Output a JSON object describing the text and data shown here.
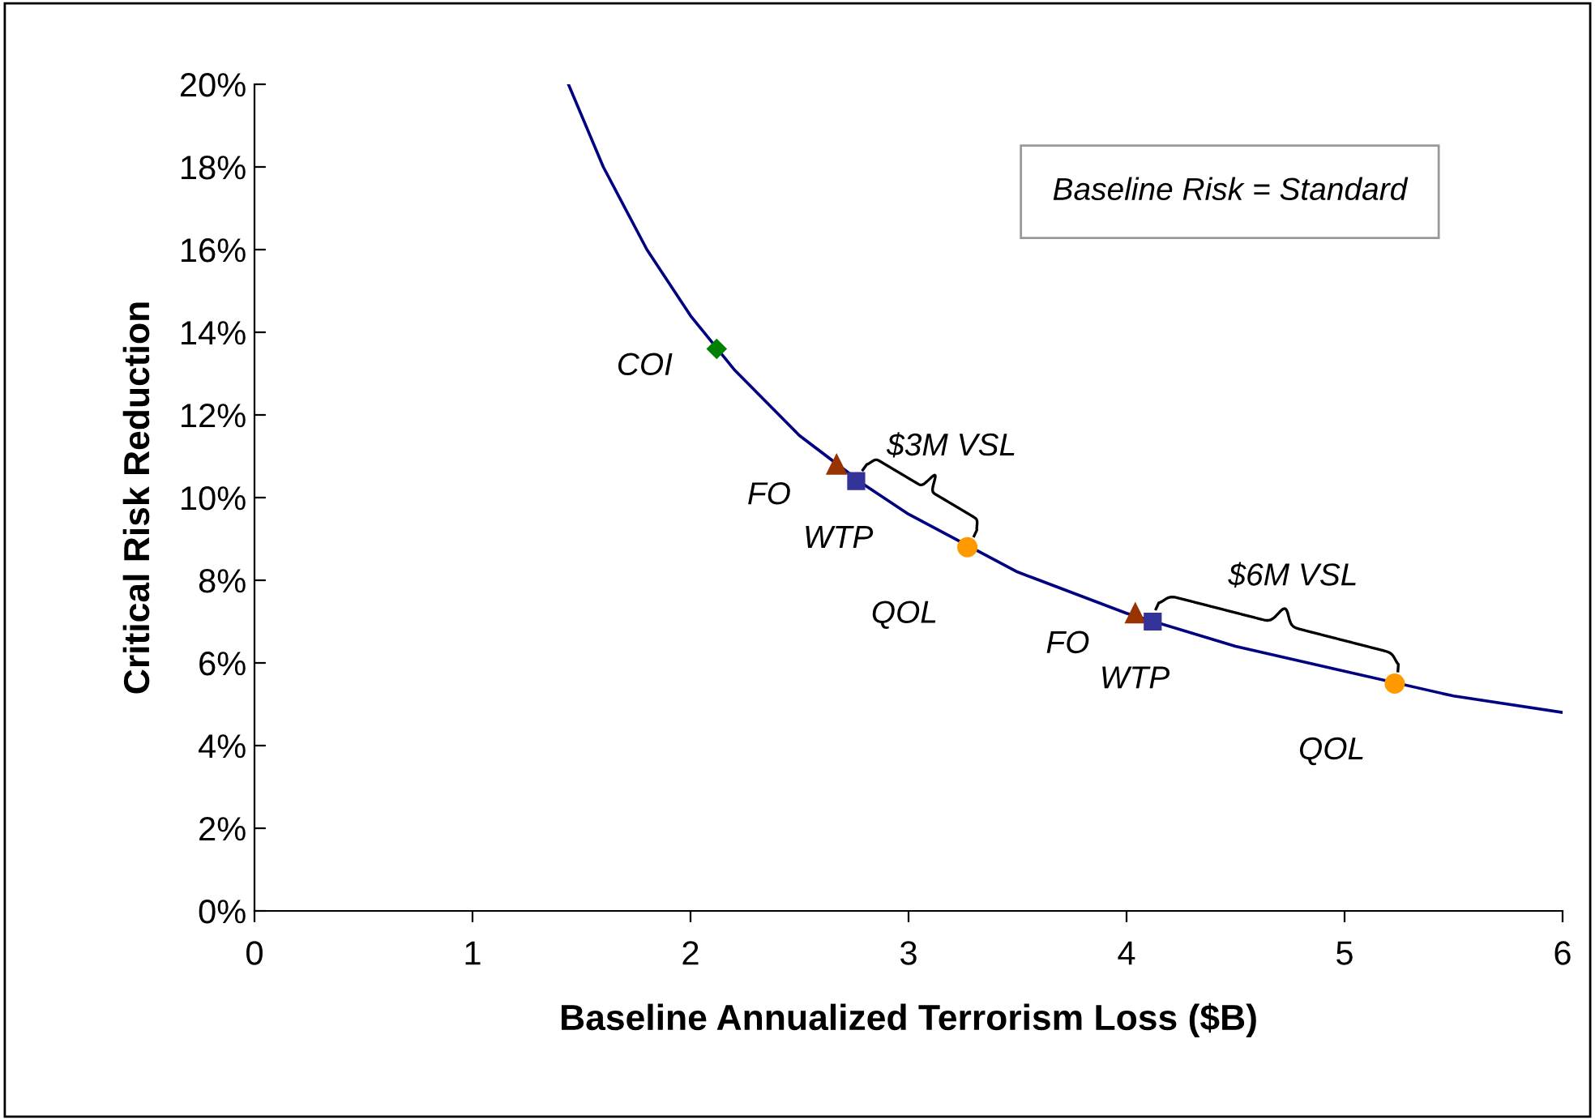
{
  "chart_data": {
    "type": "line",
    "xlabel": "Baseline Annualized Terrorism Loss ($B)",
    "ylabel": "Critical Risk Reduction",
    "xlim": [
      0,
      6
    ],
    "xticks": [
      0,
      1,
      2,
      3,
      4,
      5,
      6
    ],
    "ylim": [
      0,
      20
    ],
    "yticks": [
      {
        "value": 0,
        "label": "0%"
      },
      {
        "value": 2,
        "label": "2%"
      },
      {
        "value": 4,
        "label": "4%"
      },
      {
        "value": 6,
        "label": "6%"
      },
      {
        "value": 8,
        "label": "8%"
      },
      {
        "value": 10,
        "label": "10%"
      },
      {
        "value": 12,
        "label": "12%"
      },
      {
        "value": 14,
        "label": "14%"
      },
      {
        "value": 16,
        "label": "16%"
      },
      {
        "value": 18,
        "label": "18%"
      },
      {
        "value": 20,
        "label": "20%"
      }
    ],
    "grid": false,
    "legend": false,
    "series": [
      {
        "color": "#000080",
        "marker": "none",
        "x": [
          1.44,
          1.6,
          1.8,
          2.0,
          2.2,
          2.5,
          2.8,
          3.0,
          3.5,
          4.0,
          4.5,
          5.0,
          5.5,
          6.0
        ],
        "values": [
          20,
          18,
          16,
          14.4,
          13.1,
          11.5,
          10.3,
          9.6,
          8.2,
          7.2,
          6.4,
          5.8,
          5.2,
          4.8
        ]
      },
      {
        "type": "scatter",
        "name": "COI",
        "color": "#008000",
        "marker": "diamond",
        "x": [
          2.12
        ],
        "values": [
          13.6
        ]
      },
      {
        "type": "scatter",
        "name": "FO",
        "color": "#993300",
        "marker": "triangle",
        "x": [
          2.67,
          4.04
        ],
        "values": [
          10.8,
          7.2
        ]
      },
      {
        "type": "scatter",
        "name": "WTP",
        "color": "#333399",
        "marker": "square",
        "x": [
          2.76,
          4.12
        ],
        "values": [
          10.4,
          7.0
        ]
      },
      {
        "type": "scatter",
        "name": "QOL",
        "color": "#ff9900",
        "marker": "circle",
        "x": [
          3.27,
          5.23
        ],
        "values": [
          8.8,
          5.5
        ]
      }
    ],
    "annotations": [
      "Baseline Risk = Standard",
      "$3M VSL",
      "$6M VSL"
    ]
  }
}
